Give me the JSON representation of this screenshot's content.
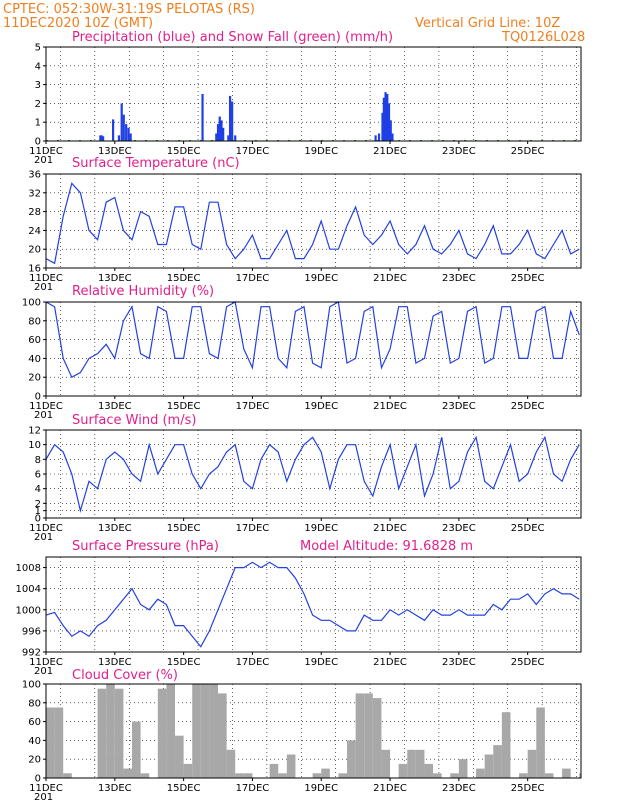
{
  "header": {
    "line1_left": "CPTEC:   052:30W-31:19S   PELOTAS (RS)",
    "line2_left": "11DEC2020  10Z  (GMT)",
    "line2_right": "Vertical Grid Line: 10Z",
    "line3_right": "TQ0126L028"
  },
  "colors": {
    "header": "#f07f20",
    "panel_title": "#e0208a",
    "precip": "#1f3fe6",
    "snow": "#1fa01f",
    "line": "#2340e0",
    "cloud": "#a8a8a8"
  },
  "x_ticks": [
    "11DEC",
    "13DEC",
    "15DEC",
    "17DEC",
    "19DEC",
    "21DEC",
    "23DEC",
    "25DEC"
  ],
  "stub_label": "201",
  "chart_data": [
    {
      "type": "bar",
      "title": "Precipitation (blue) and Snow Fall (green) (mm/h)",
      "ylim": [
        0,
        5
      ],
      "yticks": [
        0,
        1,
        2,
        3,
        4,
        5
      ],
      "x_unit": "days since 11DEC 00Z",
      "series": [
        {
          "name": "Precipitation",
          "points": [
            [
              1.58,
              0.3
            ],
            [
              1.62,
              0.3
            ],
            [
              1.66,
              0.25
            ],
            [
              1.95,
              1.15
            ],
            [
              2.12,
              0.3
            ],
            [
              2.2,
              2.0
            ],
            [
              2.26,
              1.4
            ],
            [
              2.33,
              0.9
            ],
            [
              2.4,
              0.7
            ],
            [
              2.46,
              0.4
            ],
            [
              4.55,
              2.5
            ],
            [
              4.95,
              0.4
            ],
            [
              5.0,
              0.9
            ],
            [
              5.05,
              1.3
            ],
            [
              5.1,
              1.1
            ],
            [
              5.15,
              0.7
            ],
            [
              5.3,
              0.3
            ],
            [
              5.35,
              2.4
            ],
            [
              5.41,
              2.1
            ],
            [
              5.5,
              0.3
            ],
            [
              9.58,
              0.3
            ],
            [
              9.68,
              0.4
            ],
            [
              9.78,
              1.5
            ],
            [
              9.82,
              2.3
            ],
            [
              9.87,
              2.6
            ],
            [
              9.92,
              2.5
            ],
            [
              9.97,
              2.0
            ],
            [
              10.02,
              1.1
            ],
            [
              10.07,
              0.4
            ]
          ]
        },
        {
          "name": "Snow Fall",
          "points": []
        }
      ]
    },
    {
      "type": "line",
      "title": "Surface Temperature (nC)",
      "ylim": [
        16,
        36
      ],
      "yticks": [
        16,
        20,
        24,
        28,
        32,
        36
      ],
      "x_unit": "days since 11DEC 00Z",
      "x": [
        0.0,
        0.25,
        0.5,
        0.75,
        1.0,
        1.25,
        1.5,
        1.75,
        2.0,
        2.25,
        2.5,
        2.75,
        3.0,
        3.25,
        3.5,
        3.75,
        4.0,
        4.25,
        4.5,
        4.75,
        5.0,
        5.25,
        5.5,
        5.75,
        6.0,
        6.25,
        6.5,
        6.75,
        7.0,
        7.25,
        7.5,
        7.75,
        8.0,
        8.25,
        8.5,
        8.75,
        9.0,
        9.25,
        9.5,
        9.75,
        10.0,
        10.25,
        10.5,
        10.75,
        11.0,
        11.25,
        11.5,
        11.75,
        12.0,
        12.25,
        12.5,
        12.75,
        13.0,
        13.25,
        13.5,
        13.75,
        14.0,
        14.25,
        14.5,
        14.75,
        15.0,
        15.25,
        15.5
      ],
      "values": [
        18.0,
        17.0,
        27.0,
        34.0,
        32.0,
        24.0,
        22.0,
        30.0,
        31.0,
        24.0,
        22.0,
        28.0,
        27.0,
        21.0,
        21.0,
        29.0,
        29.0,
        21.0,
        20.0,
        30.0,
        30.0,
        21.0,
        18.0,
        20.0,
        23.0,
        18.0,
        18.0,
        21.0,
        24.0,
        18.0,
        18.0,
        21.0,
        26.0,
        20.0,
        20.0,
        25.0,
        29.0,
        23.0,
        21.0,
        23.0,
        26.0,
        21.0,
        19.0,
        21.0,
        25.0,
        20.0,
        19.0,
        21.0,
        24.0,
        19.0,
        18.0,
        21.0,
        25.0,
        19.0,
        19.0,
        21.0,
        24.0,
        19.0,
        18.0,
        21.0,
        24.0,
        19.0,
        20.0
      ]
    },
    {
      "type": "line",
      "title": "Relative Humidity (%)",
      "ylim": [
        0,
        100
      ],
      "yticks": [
        0,
        20,
        40,
        60,
        80,
        100
      ],
      "x_unit": "days since 11DEC 00Z",
      "x": [
        0.0,
        0.25,
        0.5,
        0.75,
        1.0,
        1.25,
        1.5,
        1.75,
        2.0,
        2.25,
        2.5,
        2.75,
        3.0,
        3.25,
        3.5,
        3.75,
        4.0,
        4.25,
        4.5,
        4.75,
        5.0,
        5.25,
        5.5,
        5.75,
        6.0,
        6.25,
        6.5,
        6.75,
        7.0,
        7.25,
        7.5,
        7.75,
        8.0,
        8.25,
        8.5,
        8.75,
        9.0,
        9.25,
        9.5,
        9.75,
        10.0,
        10.25,
        10.5,
        10.75,
        11.0,
        11.25,
        11.5,
        11.75,
        12.0,
        12.25,
        12.5,
        12.75,
        13.0,
        13.25,
        13.5,
        13.75,
        14.0,
        14.25,
        14.5,
        14.75,
        15.0,
        15.25,
        15.5
      ],
      "values": [
        100.0,
        95.0,
        40.0,
        20.0,
        25.0,
        40.0,
        45.0,
        55.0,
        40.0,
        80.0,
        95.0,
        45.0,
        40.0,
        95.0,
        90.0,
        40.0,
        40.0,
        95.0,
        95.0,
        45.0,
        40.0,
        95.0,
        100.0,
        50.0,
        30.0,
        95.0,
        95.0,
        40.0,
        30.0,
        90.0,
        95.0,
        35.0,
        30.0,
        95.0,
        100.0,
        35.0,
        40.0,
        90.0,
        95.0,
        30.0,
        50.0,
        95.0,
        95.0,
        35.0,
        40.0,
        85.0,
        90.0,
        35.0,
        40.0,
        90.0,
        95.0,
        35.0,
        40.0,
        95.0,
        95.0,
        40.0,
        40.0,
        90.0,
        95.0,
        40.0,
        40.0,
        90.0,
        65.0
      ]
    },
    {
      "type": "line",
      "title": "Surface Wind (m/s)",
      "ylim": [
        0,
        12
      ],
      "yticks": [
        0,
        1,
        2,
        4,
        6,
        8,
        10,
        12
      ],
      "x_unit": "days since 11DEC 00Z",
      "x": [
        0.0,
        0.25,
        0.5,
        0.75,
        1.0,
        1.25,
        1.5,
        1.75,
        2.0,
        2.25,
        2.5,
        2.75,
        3.0,
        3.25,
        3.5,
        3.75,
        4.0,
        4.25,
        4.5,
        4.75,
        5.0,
        5.25,
        5.5,
        5.75,
        6.0,
        6.25,
        6.5,
        6.75,
        7.0,
        7.25,
        7.5,
        7.75,
        8.0,
        8.25,
        8.5,
        8.75,
        9.0,
        9.25,
        9.5,
        9.75,
        10.0,
        10.25,
        10.5,
        10.75,
        11.0,
        11.25,
        11.5,
        11.75,
        12.0,
        12.25,
        12.5,
        12.75,
        13.0,
        13.25,
        13.5,
        13.75,
        14.0,
        14.25,
        14.5,
        14.75,
        15.0,
        15.25,
        15.5
      ],
      "values": [
        8.0,
        10.0,
        9.0,
        6.0,
        1.0,
        5.0,
        4.0,
        8.0,
        9.0,
        8.0,
        6.0,
        5.0,
        10.0,
        6.0,
        8.0,
        10.0,
        10.0,
        6.0,
        4.0,
        6.0,
        7.0,
        9.0,
        10.0,
        5.0,
        4.0,
        8.0,
        10.0,
        9.0,
        5.0,
        8.0,
        10.0,
        11.0,
        9.0,
        4.0,
        8.0,
        10.0,
        10.0,
        5.0,
        3.0,
        7.0,
        10.0,
        4.0,
        7.0,
        10.0,
        3.0,
        6.0,
        11.0,
        4.0,
        5.0,
        9.0,
        11.0,
        5.0,
        4.0,
        7.0,
        10.0,
        5.0,
        6.0,
        9.0,
        11.0,
        6.0,
        5.0,
        8.0,
        10.0
      ]
    },
    {
      "type": "line",
      "title": "Surface Pressure (hPa)",
      "annotation": "Model Altitude: 91.6828  m",
      "ylim": [
        992,
        1010
      ],
      "yticks": [
        992,
        996,
        1000,
        1004,
        1008
      ],
      "x_unit": "days since 11DEC 00Z",
      "x": [
        0.0,
        0.25,
        0.5,
        0.75,
        1.0,
        1.25,
        1.5,
        1.75,
        2.0,
        2.25,
        2.5,
        2.75,
        3.0,
        3.25,
        3.5,
        3.75,
        4.0,
        4.25,
        4.5,
        4.75,
        5.0,
        5.25,
        5.5,
        5.75,
        6.0,
        6.25,
        6.5,
        6.75,
        7.0,
        7.25,
        7.5,
        7.75,
        8.0,
        8.25,
        8.5,
        8.75,
        9.0,
        9.25,
        9.5,
        9.75,
        10.0,
        10.25,
        10.5,
        10.75,
        11.0,
        11.25,
        11.5,
        11.75,
        12.0,
        12.25,
        12.5,
        12.75,
        13.0,
        13.25,
        13.5,
        13.75,
        14.0,
        14.25,
        14.5,
        14.75,
        15.0,
        15.25,
        15.5
      ],
      "values": [
        999.0,
        999.5,
        997.0,
        995.0,
        996.0,
        995.0,
        997.0,
        998.0,
        1000.0,
        1002.0,
        1004.0,
        1001.0,
        1000.0,
        1002.0,
        1001.0,
        997.0,
        997.0,
        995.0,
        993.0,
        996.0,
        1000.0,
        1004.0,
        1008.0,
        1008.0,
        1009.0,
        1008.0,
        1009.0,
        1008.0,
        1008.0,
        1006.0,
        1003.0,
        999.0,
        998.0,
        998.0,
        997.0,
        996.0,
        996.0,
        999.0,
        998.0,
        998.0,
        1000.0,
        999.0,
        1000.0,
        999.0,
        998.0,
        1000.0,
        999.0,
        999.0,
        1000.0,
        999.0,
        999.0,
        999.0,
        1001.0,
        1000.0,
        1002.0,
        1002.0,
        1003.0,
        1001.0,
        1003.0,
        1004.0,
        1003.0,
        1003.0,
        1002.0
      ]
    },
    {
      "type": "area",
      "title": "Cloud Cover (%)",
      "ylim": [
        0,
        100
      ],
      "yticks": [
        0,
        20,
        40,
        60,
        80,
        100
      ],
      "x_unit": "days since 11DEC 00Z",
      "x": [
        0.0,
        0.25,
        0.5,
        0.75,
        1.0,
        1.25,
        1.5,
        1.75,
        2.0,
        2.25,
        2.5,
        2.75,
        3.0,
        3.25,
        3.5,
        3.75,
        4.0,
        4.25,
        4.5,
        4.75,
        5.0,
        5.25,
        5.5,
        5.75,
        6.0,
        6.25,
        6.5,
        6.75,
        7.0,
        7.25,
        7.5,
        7.75,
        8.0,
        8.25,
        8.5,
        8.75,
        9.0,
        9.25,
        9.5,
        9.75,
        10.0,
        10.25,
        10.5,
        10.75,
        11.0,
        11.25,
        11.5,
        11.75,
        12.0,
        12.25,
        12.5,
        12.75,
        13.0,
        13.25,
        13.5,
        13.75,
        14.0,
        14.25,
        14.5,
        14.75,
        15.0,
        15.25,
        15.5
      ],
      "values": [
        75.0,
        75.0,
        5.0,
        0.0,
        0.0,
        0.0,
        95.0,
        100.0,
        95.0,
        10.0,
        60.0,
        5.0,
        0.0,
        95.0,
        100.0,
        45.0,
        15.0,
        100.0,
        100.0,
        100.0,
        90.0,
        30.0,
        5.0,
        5.0,
        0.0,
        0.0,
        15.0,
        5.0,
        25.0,
        0.0,
        0.0,
        5.0,
        10.0,
        0.0,
        5.0,
        40.0,
        90.0,
        90.0,
        85.0,
        30.0,
        0.0,
        15.0,
        30.0,
        30.0,
        15.0,
        5.0,
        0.0,
        5.0,
        20.0,
        0.0,
        10.0,
        25.0,
        35.0,
        70.0,
        0.0,
        5.0,
        30.0,
        75.0,
        5.0,
        0.0,
        10.0,
        0.0,
        5.0
      ]
    }
  ]
}
